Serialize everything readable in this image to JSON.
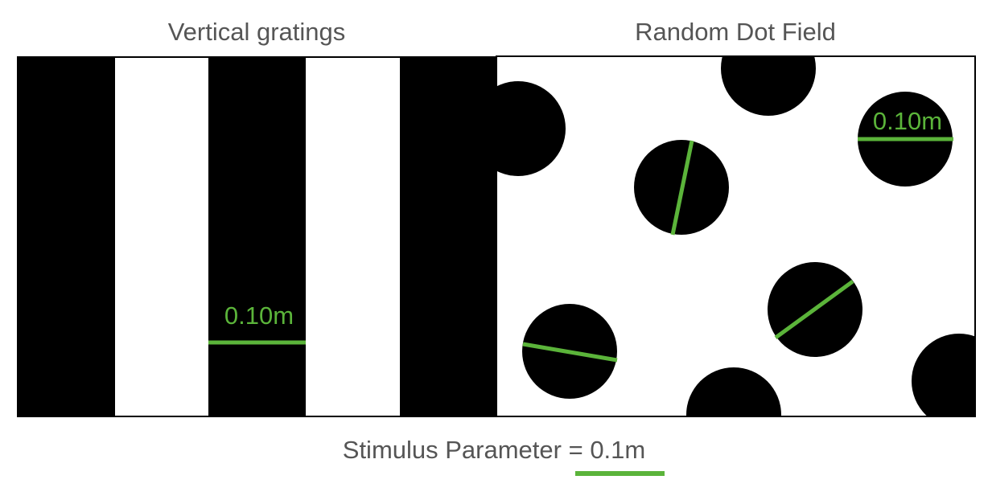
{
  "panels": {
    "left": {
      "title": "Vertical gratings",
      "measure_label": "0.10m"
    },
    "right": {
      "title": "Random Dot Field",
      "measure_label": "0.10m"
    }
  },
  "caption": {
    "prefix": "Stimulus Parameter =",
    "value": "0.1m"
  },
  "colors": {
    "accent": "#5bb43a",
    "foreground": "#000000",
    "background": "#ffffff",
    "text": "#555555"
  }
}
